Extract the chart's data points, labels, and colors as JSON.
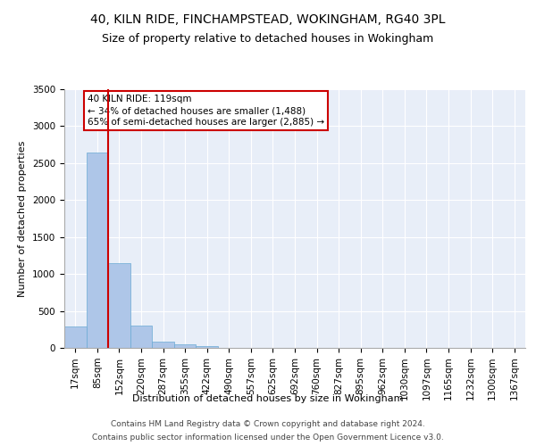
{
  "title": "40, KILN RIDE, FINCHAMPSTEAD, WOKINGHAM, RG40 3PL",
  "subtitle": "Size of property relative to detached houses in Wokingham",
  "xlabel": "Distribution of detached houses by size in Wokingham",
  "ylabel": "Number of detached properties",
  "categories": [
    "17sqm",
    "85sqm",
    "152sqm",
    "220sqm",
    "287sqm",
    "355sqm",
    "422sqm",
    "490sqm",
    "557sqm",
    "625sqm",
    "692sqm",
    "760sqm",
    "827sqm",
    "895sqm",
    "962sqm",
    "1030sqm",
    "1097sqm",
    "1165sqm",
    "1232sqm",
    "1300sqm",
    "1367sqm"
  ],
  "values": [
    290,
    2640,
    1145,
    300,
    90,
    45,
    30,
    0,
    0,
    0,
    0,
    0,
    0,
    0,
    0,
    0,
    0,
    0,
    0,
    0,
    0
  ],
  "bar_color": "#aec6e8",
  "bar_edge_color": "#6aaad4",
  "red_line_x": 1.51,
  "red_line_color": "#cc0000",
  "annotation_text": "40 KILN RIDE: 119sqm\n← 34% of detached houses are smaller (1,488)\n65% of semi-detached houses are larger (2,885) →",
  "annotation_box_color": "#ffffff",
  "annotation_box_edge": "#cc0000",
  "ylim": [
    0,
    3500
  ],
  "yticks": [
    0,
    500,
    1000,
    1500,
    2000,
    2500,
    3000,
    3500
  ],
  "footer_line1": "Contains HM Land Registry data © Crown copyright and database right 2024.",
  "footer_line2": "Contains public sector information licensed under the Open Government Licence v3.0.",
  "plot_bg_color": "#e8eef8",
  "title_fontsize": 10,
  "subtitle_fontsize": 9,
  "axis_label_fontsize": 8,
  "tick_fontsize": 7.5,
  "footer_fontsize": 6.5,
  "annotation_fontsize": 7.5
}
